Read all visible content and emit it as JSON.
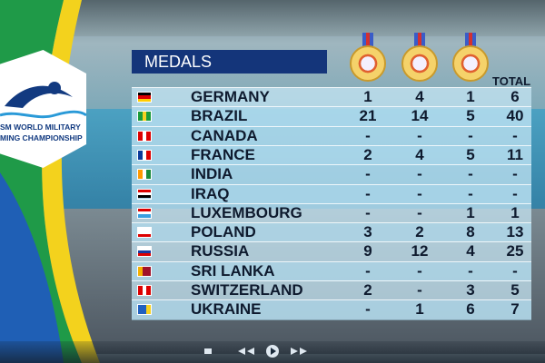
{
  "logo": {
    "line1": "SM WORLD MILITARY",
    "line2": "MING CHAMPIONSHIP"
  },
  "table": {
    "title": "MEDALS",
    "total_header": "TOTAL",
    "rows": [
      [
        "GERMANY",
        1,
        4,
        1,
        6
      ],
      [
        "BRAZIL",
        21,
        14,
        5,
        40
      ],
      [
        "CANADA",
        "-",
        "-",
        "-",
        "-"
      ],
      [
        "FRANCE",
        2,
        4,
        5,
        11
      ],
      [
        "INDIA",
        "-",
        "-",
        "-",
        "-"
      ],
      [
        "IRAQ",
        "-",
        "-",
        "-",
        "-"
      ],
      [
        "LUXEMBOURG",
        "-",
        "-",
        1,
        1
      ],
      [
        "POLAND",
        3,
        2,
        8,
        13
      ],
      [
        "RUSSIA",
        9,
        12,
        4,
        25
      ],
      [
        "SRI LANKA",
        "-",
        "-",
        "-",
        "-"
      ],
      [
        "SWITZERLAND",
        2,
        "-",
        3,
        5
      ],
      [
        "UKRAINE",
        "-",
        1,
        6,
        7
      ]
    ]
  }
}
